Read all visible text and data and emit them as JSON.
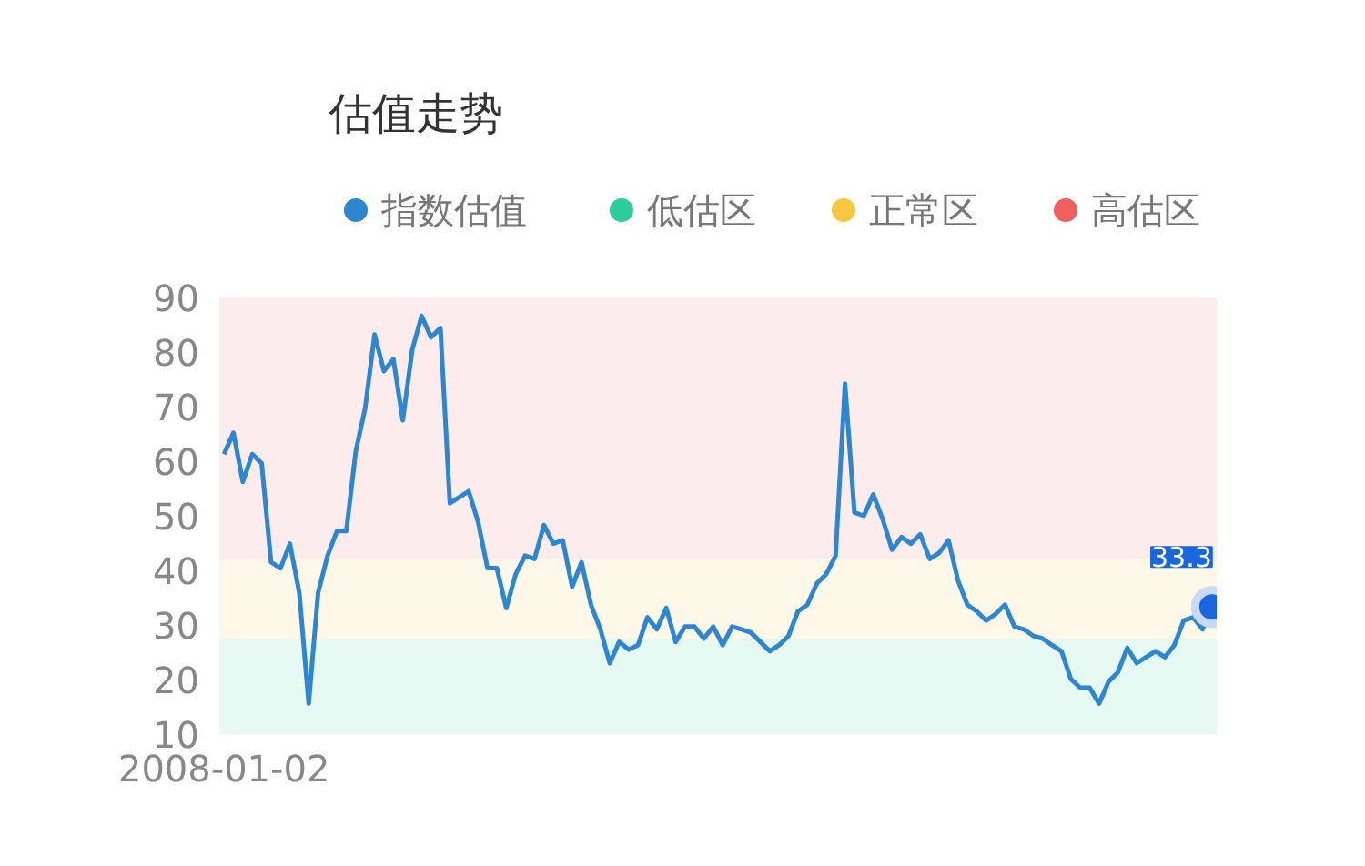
{
  "chart_data": {
    "type": "line",
    "title": "估值走势",
    "categories": [
      "2008-01-02",
      null,
      null,
      null,
      null,
      null,
      null,
      null,
      null,
      null,
      null,
      null,
      null,
      null,
      null,
      null,
      null,
      null,
      null,
      null,
      null,
      null,
      null,
      null,
      null,
      null,
      null,
      null,
      null,
      null,
      null,
      null,
      null,
      null,
      null,
      null,
      null,
      null,
      null,
      null,
      null,
      null,
      null,
      null,
      null,
      null,
      null,
      null,
      null,
      null,
      null,
      null,
      null,
      null,
      null,
      null,
      null,
      null,
      null,
      null,
      null,
      null,
      null,
      null,
      null,
      null,
      null,
      null,
      null,
      null,
      null,
      null,
      null,
      null,
      null,
      null,
      null,
      null,
      null,
      null,
      null,
      null,
      null,
      null,
      null,
      null,
      null,
      null,
      null,
      null,
      null,
      null,
      null,
      null,
      null,
      null,
      null,
      null,
      null,
      null,
      null,
      null,
      null,
      null,
      null,
      null
    ],
    "series": [
      {
        "name": "指数估值",
        "color": "#2e86d0",
        "values": [
          61.3,
          65.2,
          56.2,
          61.3,
          59.6,
          41.5,
          40.4,
          44.9,
          35.9,
          15.6,
          35.9,
          42.7,
          47.2,
          47.2,
          61.8,
          69.7,
          83.2,
          76.5,
          78.7,
          67.5,
          80.4,
          86.6,
          82.7,
          84.4,
          52.3,
          53.4,
          54.5,
          48.9,
          40.4,
          40.4,
          33.1,
          39.3,
          42.7,
          42.1,
          48.3,
          44.9,
          45.5,
          37.0,
          41.5,
          33.7,
          29.2,
          23.0,
          26.9,
          25.5,
          26.3,
          31.4,
          29.2,
          33.1,
          26.9,
          29.7,
          29.7,
          27.5,
          29.7,
          26.3,
          29.7,
          29.2,
          28.6,
          26.9,
          25.2,
          26.3,
          28.0,
          32.5,
          33.7,
          37.6,
          39.3,
          42.7,
          74.2,
          50.6,
          50.0,
          53.9,
          49.4,
          43.8,
          46.1,
          44.9,
          46.6,
          42.1,
          43.2,
          45.5,
          38.2,
          33.7,
          32.5,
          30.8,
          32.0,
          33.7,
          29.7,
          29.2,
          28.0,
          27.5,
          26.3,
          25.2,
          20.1,
          18.5,
          18.5,
          15.6,
          19.6,
          21.3,
          25.8,
          23.0,
          24.1,
          25.2,
          24.1,
          26.3,
          30.8,
          31.4,
          29.2,
          33.3
        ]
      }
    ],
    "bands": [
      {
        "axis": "y",
        "from": 10,
        "to": 27.5,
        "label": "低估区",
        "color": "#2ecc9a"
      },
      {
        "axis": "y",
        "from": 27.5,
        "to": 42,
        "label": "正常区",
        "color": "#f5c842"
      },
      {
        "axis": "y",
        "from": 42,
        "to": 90,
        "label": "高估区",
        "color": "#f06060"
      }
    ],
    "annotations": [
      "33.3"
    ],
    "ylim": [
      10,
      90
    ],
    "yticks": [
      10,
      20,
      30,
      40,
      50,
      60,
      70,
      80,
      90
    ],
    "grid": false,
    "legend": "top",
    "marker": "none"
  }
}
